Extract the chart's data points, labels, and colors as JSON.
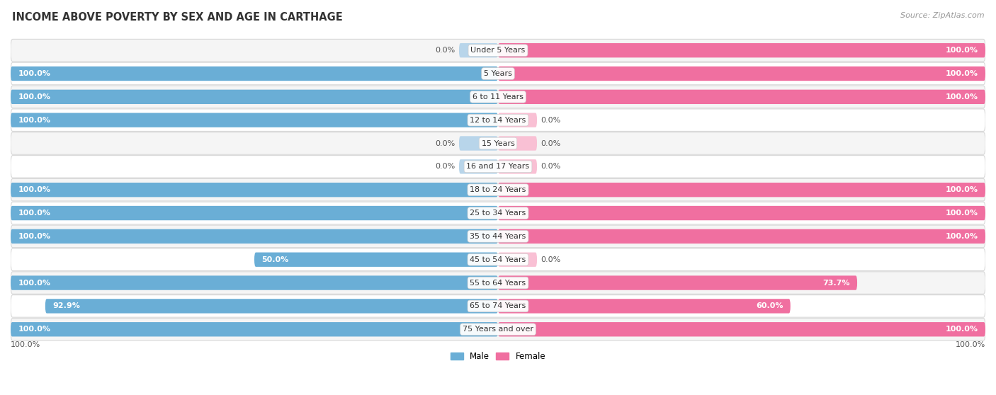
{
  "title": "INCOME ABOVE POVERTY BY SEX AND AGE IN CARTHAGE",
  "source": "Source: ZipAtlas.com",
  "categories": [
    "Under 5 Years",
    "5 Years",
    "6 to 11 Years",
    "12 to 14 Years",
    "15 Years",
    "16 and 17 Years",
    "18 to 24 Years",
    "25 to 34 Years",
    "35 to 44 Years",
    "45 to 54 Years",
    "55 to 64 Years",
    "65 to 74 Years",
    "75 Years and over"
  ],
  "male_values": [
    0.0,
    100.0,
    100.0,
    100.0,
    0.0,
    0.0,
    100.0,
    100.0,
    100.0,
    50.0,
    100.0,
    92.9,
    100.0
  ],
  "female_values": [
    100.0,
    100.0,
    100.0,
    0.0,
    0.0,
    0.0,
    100.0,
    100.0,
    100.0,
    0.0,
    73.7,
    60.0,
    100.0
  ],
  "male_color": "#6aaed6",
  "female_color": "#f06fa0",
  "male_color_light": "#b8d5ea",
  "female_color_light": "#f9c0d4",
  "row_color_odd": "#f5f5f5",
  "row_color_even": "#ffffff",
  "row_border_color": "#d8d8d8",
  "label_fontsize": 8.0,
  "title_fontsize": 10.5,
  "source_fontsize": 8.0,
  "bar_height": 0.62,
  "stub_size": 8.0
}
